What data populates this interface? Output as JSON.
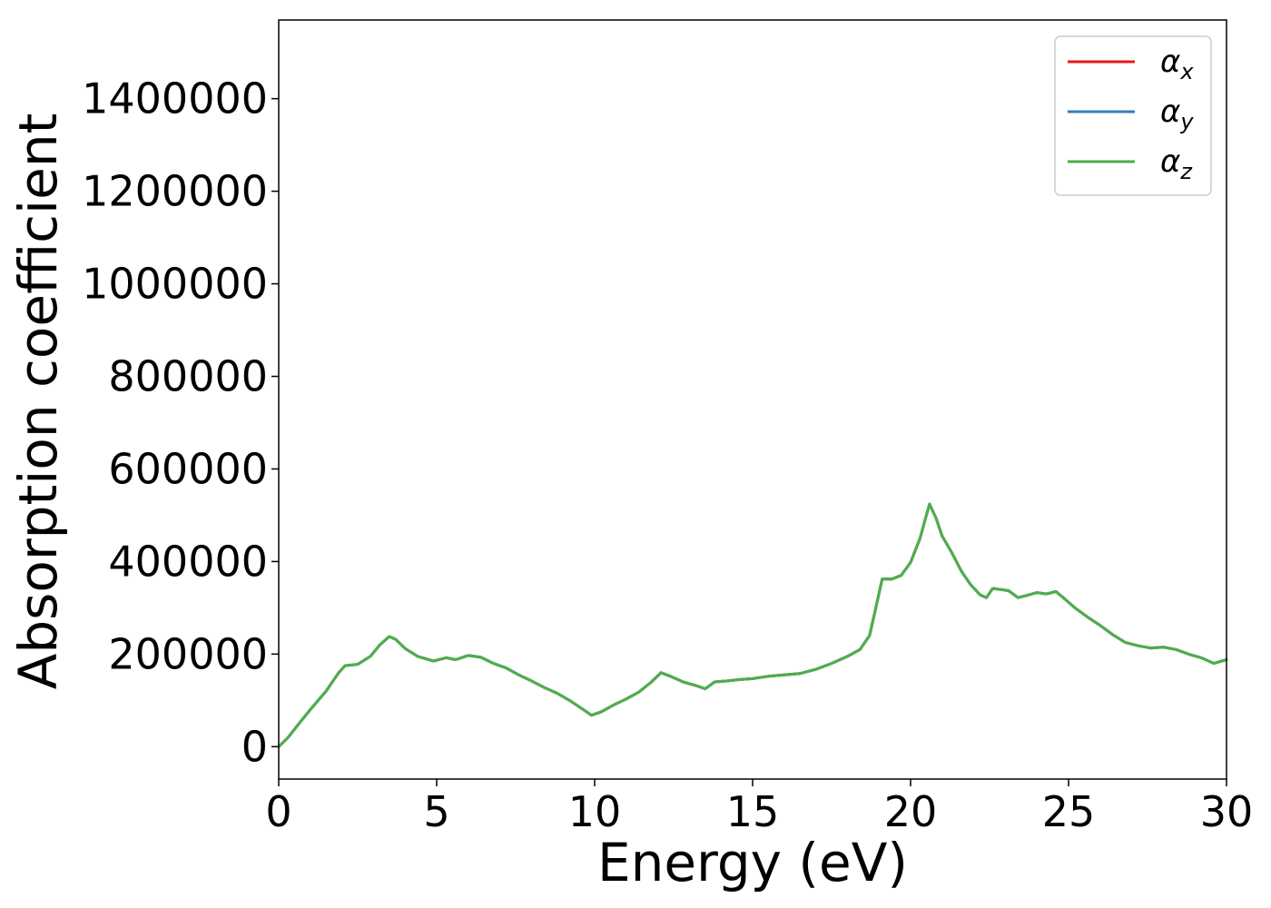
{
  "chart_data": {
    "type": "line",
    "xlabel": "Energy (eV)",
    "ylabel": "Absorption coefficient",
    "xlim": [
      0,
      30
    ],
    "ylim": [
      -70000,
      1570000
    ],
    "xticks": [
      0,
      5,
      10,
      15,
      20,
      25,
      30
    ],
    "xtick_labels": [
      "0",
      "5",
      "10",
      "15",
      "20",
      "25",
      "30"
    ],
    "yticks": [
      0,
      200000,
      400000,
      600000,
      800000,
      1000000,
      1200000,
      1400000
    ],
    "ytick_labels": [
      "0",
      "200000",
      "400000",
      "600000",
      "800000",
      "1000000",
      "1200000",
      "1400000"
    ],
    "grid": false,
    "legend_position": "top-right",
    "x": [
      0,
      0.3,
      0.7,
      1.0,
      1.5,
      1.9,
      2.1,
      2.5,
      2.9,
      3.2,
      3.5,
      3.7,
      4.0,
      4.4,
      4.9,
      5.3,
      5.6,
      6.0,
      6.4,
      6.8,
      7.2,
      7.6,
      8.0,
      8.4,
      8.8,
      9.2,
      9.6,
      9.9,
      10.2,
      10.6,
      11.0,
      11.4,
      11.8,
      12.1,
      12.4,
      12.8,
      13.2,
      13.5,
      13.8,
      14.2,
      14.6,
      15.0,
      15.5,
      16.0,
      16.5,
      17.0,
      17.5,
      18.0,
      18.4,
      18.7,
      18.9,
      19.1,
      19.4,
      19.7,
      20.0,
      20.3,
      20.5,
      20.6,
      20.8,
      21.0,
      21.3,
      21.6,
      21.9,
      22.2,
      22.4,
      22.6,
      22.8,
      23.1,
      23.4,
      23.7,
      24.0,
      24.3,
      24.6,
      24.9,
      25.2,
      25.6,
      26.0,
      26.4,
      26.8,
      27.2,
      27.6,
      28.0,
      28.4,
      28.8,
      29.2,
      29.6,
      30.0
    ],
    "series": [
      {
        "name": "α_x",
        "color": "#e41a1c",
        "y": [
          0,
          20000,
          55000,
          80000,
          120000,
          160000,
          175000,
          178000,
          195000,
          220000,
          238000,
          232000,
          212000,
          195000,
          185000,
          192000,
          188000,
          197000,
          193000,
          180000,
          170000,
          155000,
          142000,
          128000,
          116000,
          100000,
          82000,
          68000,
          75000,
          90000,
          103000,
          118000,
          140000,
          160000,
          152000,
          140000,
          132000,
          125000,
          140000,
          142000,
          145000,
          147000,
          152000,
          155000,
          158000,
          167000,
          180000,
          195000,
          210000,
          240000,
          300000,
          362000,
          362000,
          370000,
          398000,
          450000,
          500000,
          524000,
          495000,
          455000,
          420000,
          380000,
          350000,
          328000,
          322000,
          342000,
          340000,
          337000,
          322000,
          327000,
          333000,
          330000,
          335000,
          318000,
          300000,
          280000,
          262000,
          242000,
          225000,
          218000,
          213000,
          215000,
          210000,
          200000,
          192000,
          180000,
          188000
        ]
      },
      {
        "name": "α_y",
        "color": "#377eb8",
        "y": [
          0,
          20000,
          55000,
          80000,
          120000,
          160000,
          175000,
          178000,
          195000,
          220000,
          238000,
          232000,
          212000,
          195000,
          185000,
          192000,
          188000,
          197000,
          193000,
          180000,
          170000,
          155000,
          142000,
          128000,
          116000,
          100000,
          82000,
          68000,
          75000,
          90000,
          103000,
          118000,
          140000,
          160000,
          152000,
          140000,
          132000,
          125000,
          140000,
          142000,
          145000,
          147000,
          152000,
          155000,
          158000,
          167000,
          180000,
          195000,
          210000,
          240000,
          300000,
          362000,
          362000,
          370000,
          398000,
          450000,
          500000,
          524000,
          495000,
          455000,
          420000,
          380000,
          350000,
          328000,
          322000,
          342000,
          340000,
          337000,
          322000,
          327000,
          333000,
          330000,
          335000,
          318000,
          300000,
          280000,
          262000,
          242000,
          225000,
          218000,
          213000,
          215000,
          210000,
          200000,
          192000,
          180000,
          188000
        ]
      },
      {
        "name": "α_z",
        "color": "#4daf4a",
        "y": [
          0,
          20000,
          55000,
          80000,
          120000,
          160000,
          175000,
          178000,
          195000,
          220000,
          238000,
          232000,
          212000,
          195000,
          185000,
          192000,
          188000,
          197000,
          193000,
          180000,
          170000,
          155000,
          142000,
          128000,
          116000,
          100000,
          82000,
          68000,
          75000,
          90000,
          103000,
          118000,
          140000,
          160000,
          152000,
          140000,
          132000,
          125000,
          140000,
          142000,
          145000,
          147000,
          152000,
          155000,
          158000,
          167000,
          180000,
          195000,
          210000,
          240000,
          300000,
          362000,
          362000,
          370000,
          398000,
          450000,
          500000,
          524000,
          495000,
          455000,
          420000,
          380000,
          350000,
          328000,
          322000,
          342000,
          340000,
          337000,
          322000,
          327000,
          333000,
          330000,
          335000,
          318000,
          300000,
          280000,
          262000,
          242000,
          225000,
          218000,
          213000,
          215000,
          210000,
          200000,
          192000,
          180000,
          188000
        ]
      }
    ],
    "legend": [
      {
        "symbol": "α",
        "subscript": "x",
        "color": "#e41a1c"
      },
      {
        "symbol": "α",
        "subscript": "y",
        "color": "#377eb8"
      },
      {
        "symbol": "α",
        "subscript": "z",
        "color": "#4daf4a"
      }
    ]
  }
}
